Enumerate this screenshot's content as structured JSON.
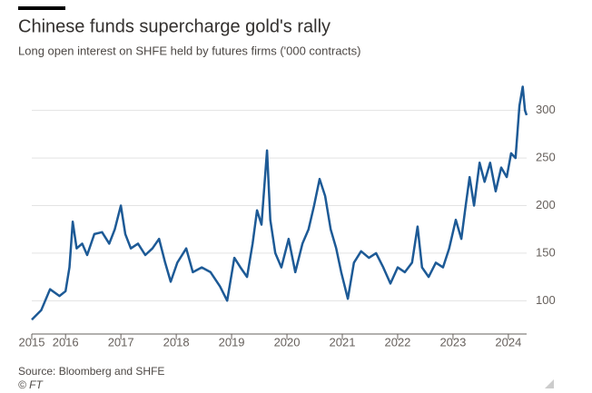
{
  "chart_data": {
    "type": "line",
    "title": "Chinese funds supercharge gold's rally",
    "subtitle": "Long open interest on SHFE held by futures firms ('000 contracts)",
    "source": "Source: Bloomberg and SHFE",
    "credit": "© FT",
    "x": [
      2015.39,
      2015.56,
      2015.72,
      2015.89,
      2016.0,
      2016.07,
      2016.13,
      2016.2,
      2016.3,
      2016.39,
      2016.52,
      2016.66,
      2016.79,
      2016.89,
      2017.0,
      2017.08,
      2017.18,
      2017.31,
      2017.44,
      2017.57,
      2017.69,
      2017.8,
      2017.9,
      2018.02,
      2018.18,
      2018.3,
      2018.46,
      2018.62,
      2018.79,
      2018.92,
      2019.05,
      2019.16,
      2019.28,
      2019.38,
      2019.46,
      2019.54,
      2019.64,
      2019.7,
      2019.79,
      2019.9,
      2020.03,
      2020.15,
      2020.28,
      2020.39,
      2020.49,
      2020.59,
      2020.69,
      2020.79,
      2020.89,
      2020.98,
      2021.1,
      2021.21,
      2021.34,
      2021.48,
      2021.61,
      2021.74,
      2021.87,
      2022.0,
      2022.13,
      2022.26,
      2022.36,
      2022.44,
      2022.56,
      2022.69,
      2022.82,
      2022.93,
      2023.05,
      2023.15,
      2023.23,
      2023.3,
      2023.38,
      2023.48,
      2023.57,
      2023.67,
      2023.77,
      2023.87,
      2023.97,
      2024.05,
      2024.13,
      2024.2,
      2024.26,
      2024.3,
      2024.33
    ],
    "series": [
      {
        "name": "Long open interest",
        "color": "#1d5a96",
        "values": [
          80,
          90,
          112,
          105,
          110,
          135,
          183,
          155,
          160,
          148,
          170,
          172,
          160,
          175,
          200,
          170,
          155,
          160,
          148,
          155,
          165,
          140,
          120,
          140,
          155,
          130,
          135,
          130,
          115,
          100,
          145,
          135,
          125,
          160,
          195,
          180,
          258,
          185,
          150,
          135,
          165,
          130,
          160,
          175,
          200,
          228,
          210,
          175,
          155,
          130,
          102,
          140,
          152,
          145,
          150,
          135,
          118,
          135,
          130,
          140,
          178,
          135,
          125,
          140,
          135,
          155,
          185,
          165,
          200,
          230,
          200,
          245,
          225,
          245,
          215,
          240,
          230,
          255,
          250,
          305,
          325,
          300,
          295
        ]
      }
    ],
    "xlim": [
      2015.39,
      2024.33
    ],
    "xticks": [
      {
        "value": 2015.39,
        "label": "2015"
      },
      2016,
      2017,
      2018,
      2019,
      2020,
      2021,
      2022,
      2023,
      2024
    ],
    "ylim": [
      65,
      335
    ],
    "yticks": [
      100,
      150,
      200,
      250,
      300
    ],
    "grid": true
  }
}
